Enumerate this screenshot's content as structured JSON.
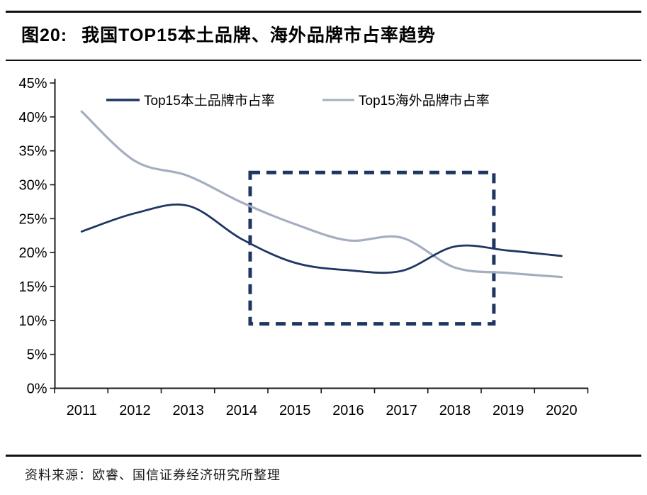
{
  "figure": {
    "title_label": "图20:",
    "title_text": "我国TOP15本土品牌、海外品牌市占率趋势",
    "source": "资料来源：欧睿、国信证券经济研究所整理"
  },
  "colors": {
    "domestic": "#1f3563",
    "overseas": "#a5aec1",
    "axis": "#1a1a1a",
    "text": "#000000",
    "rule": "#111111"
  },
  "chart_data": {
    "type": "line",
    "title": "我国TOP15本土品牌、海外品牌市占率趋势",
    "categories": [
      2011,
      2012,
      2013,
      2014,
      2015,
      2016,
      2017,
      2018,
      2019,
      2020
    ],
    "series": [
      {
        "name": "Top15本土品牌市占率",
        "color_key": "domestic",
        "values": [
          23.1,
          25.8,
          26.9,
          22.0,
          18.5,
          17.4,
          17.3,
          20.9,
          20.3,
          19.5
        ]
      },
      {
        "name": "Top15海外品牌市占率",
        "color_key": "overseas",
        "values": [
          40.8,
          33.5,
          31.3,
          27.4,
          24.2,
          21.8,
          22.2,
          17.8,
          17.0,
          16.4
        ]
      }
    ],
    "xlabel": "",
    "ylabel": "",
    "ylim": [
      0,
      45
    ],
    "y_tick_step": 5,
    "y_tick_suffix": "%",
    "grid": false,
    "legend_position": "top",
    "line_style": "smooth",
    "annotation_box": {
      "x_from": 2014.16,
      "x_to": 2018.73,
      "y_from": 9.5,
      "y_to": 31.8,
      "style": "dashed",
      "color_key": "domestic"
    }
  }
}
